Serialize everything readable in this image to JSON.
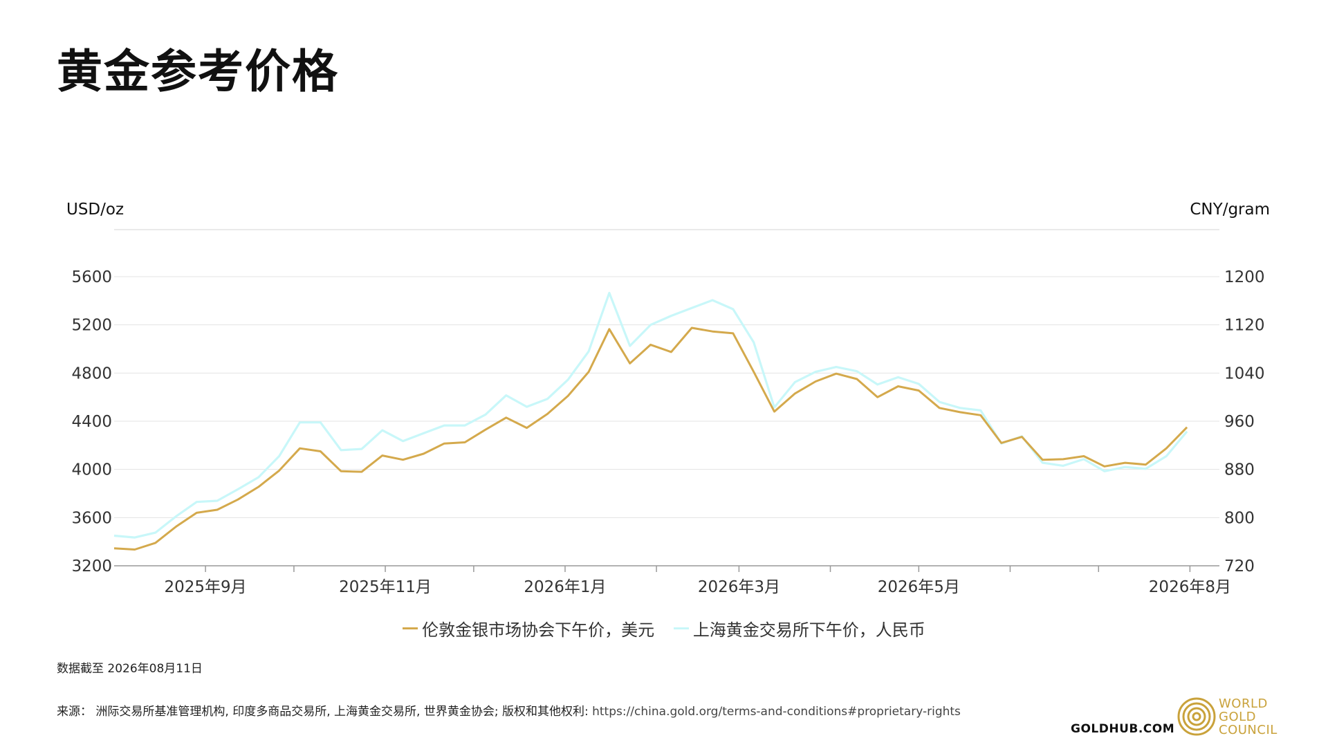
{
  "title": "黄金参考价格",
  "legend": {
    "lbma_label": "伦敦金银市场协会下午价，美元",
    "sge_label": "上海黄金交易所下午价，人民币"
  },
  "footer": {
    "date_prefix": "数据截至",
    "date_value": "2026年08月11日",
    "source_label": "来源：",
    "source_text": "洲际交易所基准管理机构, 印度多商品交易所, 上海黄金交易所, 世界黄金协会; 版权和其他权利:",
    "source_url": "https://china.gold.org/terms-and-conditions#proprietary-rights",
    "goldhub": "GOLDHUB.COM",
    "wgc_lines": [
      "WORLD",
      "GOLD",
      "COUNCIL"
    ]
  },
  "colors": {
    "lbma": "#d4a94c",
    "sge": "#c8f7f9",
    "grid": "#e3e3e3",
    "axis": "#999999",
    "text": "#333333",
    "wgc_gold": "#c9a23b"
  },
  "chart_data": {
    "type": "line",
    "title": "黄金参考价格",
    "y_left_label": "USD/oz",
    "y_right_label": "CNY/gram",
    "y_left_range": [
      3200,
      5600
    ],
    "y_right_range": [
      720,
      1200
    ],
    "y_left_ticks": [
      3200,
      3600,
      4000,
      4400,
      4800,
      5200,
      5600
    ],
    "y_right_ticks": [
      720,
      800,
      880,
      960,
      1040,
      1120,
      1200
    ],
    "x_range": [
      "2025-08-01",
      "2026-08-11"
    ],
    "x_tick_dates": [
      "2025-09-01",
      "2025-10-01",
      "2025-11-01",
      "2025-12-01",
      "2026-01-01",
      "2026-02-01",
      "2026-03-01",
      "2026-04-01",
      "2026-05-01",
      "2026-06-01",
      "2026-07-01",
      "2026-08-01"
    ],
    "x_labels": [
      {
        "date": "2025-09-01",
        "label": "2025年9月"
      },
      {
        "date": "2025-11-01",
        "label": "2025年11月"
      },
      {
        "date": "2026-01-01",
        "label": "2026年1月"
      },
      {
        "date": "2026-03-01",
        "label": "2026年3月"
      },
      {
        "date": "2026-05-01",
        "label": "2026年5月"
      },
      {
        "date": "2026-08-01",
        "label": "2026年8月"
      }
    ],
    "grid": true,
    "legend_position": "bottom-center",
    "series": [
      {
        "name": "伦敦金银市场协会下午价，美元",
        "axis": "left",
        "points": [
          [
            "2025-08-01",
            3345
          ],
          [
            "2025-08-08",
            3335
          ],
          [
            "2025-08-15",
            3390
          ],
          [
            "2025-08-22",
            3525
          ],
          [
            "2025-08-29",
            3640
          ],
          [
            "2025-09-05",
            3665
          ],
          [
            "2025-09-12",
            3750
          ],
          [
            "2025-09-19",
            3855
          ],
          [
            "2025-09-26",
            3990
          ],
          [
            "2025-10-03",
            4175
          ],
          [
            "2025-10-10",
            4150
          ],
          [
            "2025-10-17",
            3985
          ],
          [
            "2025-10-24",
            3980
          ],
          [
            "2025-10-31",
            4115
          ],
          [
            "2025-11-07",
            4080
          ],
          [
            "2025-11-14",
            4130
          ],
          [
            "2025-11-21",
            4215
          ],
          [
            "2025-11-28",
            4225
          ],
          [
            "2025-12-05",
            4330
          ],
          [
            "2025-12-12",
            4430
          ],
          [
            "2025-12-19",
            4345
          ],
          [
            "2025-12-26",
            4460
          ],
          [
            "2026-01-02",
            4610
          ],
          [
            "2026-01-09",
            4810
          ],
          [
            "2026-01-16",
            5165
          ],
          [
            "2026-01-23",
            4880
          ],
          [
            "2026-01-30",
            5035
          ],
          [
            "2026-02-06",
            4975
          ],
          [
            "2026-02-13",
            5175
          ],
          [
            "2026-02-20",
            5145
          ],
          [
            "2026-02-27",
            5130
          ],
          [
            "2026-03-06",
            4810
          ],
          [
            "2026-03-13",
            4480
          ],
          [
            "2026-03-20",
            4630
          ],
          [
            "2026-03-27",
            4730
          ],
          [
            "2026-04-03",
            4795
          ],
          [
            "2026-04-10",
            4750
          ],
          [
            "2026-04-17",
            4600
          ],
          [
            "2026-04-24",
            4690
          ],
          [
            "2026-05-01",
            4655
          ],
          [
            "2026-05-08",
            4510
          ],
          [
            "2026-05-15",
            4475
          ],
          [
            "2026-05-22",
            4450
          ],
          [
            "2026-05-29",
            4220
          ],
          [
            "2026-06-05",
            4270
          ],
          [
            "2026-06-12",
            4080
          ],
          [
            "2026-06-19",
            4085
          ],
          [
            "2026-06-26",
            4110
          ],
          [
            "2026-07-03",
            4025
          ],
          [
            "2026-07-10",
            4055
          ],
          [
            "2026-07-17",
            4040
          ],
          [
            "2026-07-24",
            4175
          ],
          [
            "2026-07-31",
            4350
          ]
        ]
      },
      {
        "name": "上海黄金交易所下午价，人民币",
        "axis": "right",
        "points": [
          [
            "2025-08-01",
            770
          ],
          [
            "2025-08-08",
            767
          ],
          [
            "2025-08-15",
            775
          ],
          [
            "2025-08-22",
            802
          ],
          [
            "2025-08-29",
            826
          ],
          [
            "2025-09-05",
            828
          ],
          [
            "2025-09-12",
            847
          ],
          [
            "2025-09-19",
            867
          ],
          [
            "2025-09-26",
            902
          ],
          [
            "2025-10-03",
            958
          ],
          [
            "2025-10-10",
            958
          ],
          [
            "2025-10-17",
            912
          ],
          [
            "2025-10-24",
            914
          ],
          [
            "2025-10-31",
            945
          ],
          [
            "2025-11-07",
            927
          ],
          [
            "2025-11-14",
            940
          ],
          [
            "2025-11-21",
            953
          ],
          [
            "2025-11-28",
            953
          ],
          [
            "2025-12-05",
            971
          ],
          [
            "2025-12-12",
            1003
          ],
          [
            "2025-12-19",
            984
          ],
          [
            "2025-12-26",
            997
          ],
          [
            "2026-01-02",
            1029
          ],
          [
            "2026-01-09",
            1076
          ],
          [
            "2026-01-16",
            1173
          ],
          [
            "2026-01-23",
            1085
          ],
          [
            "2026-01-30",
            1120
          ],
          [
            "2026-02-06",
            1135
          ],
          [
            "2026-02-13",
            1148
          ],
          [
            "2026-02-20",
            1161
          ],
          [
            "2026-02-27",
            1146
          ],
          [
            "2026-03-06",
            1091
          ],
          [
            "2026-03-13",
            983
          ],
          [
            "2026-03-20",
            1025
          ],
          [
            "2026-03-27",
            1042
          ],
          [
            "2026-04-03",
            1050
          ],
          [
            "2026-04-10",
            1043
          ],
          [
            "2026-04-17",
            1021
          ],
          [
            "2026-04-24",
            1033
          ],
          [
            "2026-05-01",
            1022
          ],
          [
            "2026-05-08",
            992
          ],
          [
            "2026-05-15",
            982
          ],
          [
            "2026-05-22",
            978
          ],
          [
            "2026-05-29",
            923
          ],
          [
            "2026-06-05",
            935
          ],
          [
            "2026-06-12",
            891
          ],
          [
            "2026-06-19",
            886
          ],
          [
            "2026-06-26",
            897
          ],
          [
            "2026-07-03",
            877
          ],
          [
            "2026-07-10",
            884
          ],
          [
            "2026-07-17",
            881
          ],
          [
            "2026-07-24",
            902
          ],
          [
            "2026-07-31",
            943
          ]
        ]
      }
    ]
  }
}
